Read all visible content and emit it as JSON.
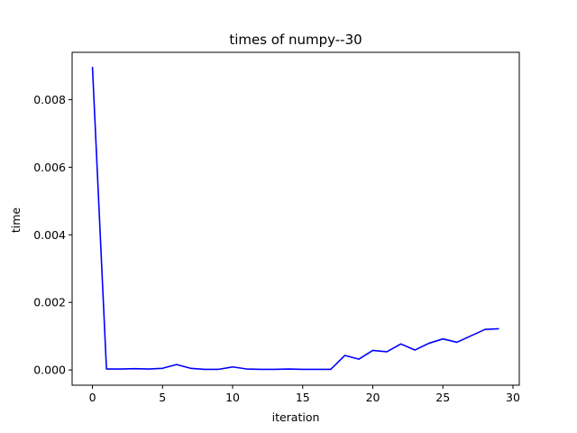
{
  "chart_data": {
    "type": "line",
    "title": "times of numpy--30",
    "xlabel": "iteration",
    "ylabel": "time",
    "xlim": [
      -1.45,
      30.45
    ],
    "ylim": [
      -0.00045,
      0.0094
    ],
    "xticks": [
      0,
      5,
      10,
      15,
      20,
      25,
      30
    ],
    "xtick_labels": [
      "0",
      "5",
      "10",
      "15",
      "20",
      "25",
      "30"
    ],
    "yticks": [
      0.0,
      0.002,
      0.004,
      0.006,
      0.008
    ],
    "ytick_labels": [
      "0.000",
      "0.002",
      "0.004",
      "0.006",
      "0.008"
    ],
    "grid": false,
    "legend": "none",
    "series": [
      {
        "color": "#0000ff",
        "x": [
          0,
          1,
          2,
          3,
          4,
          5,
          6,
          7,
          8,
          9,
          10,
          11,
          12,
          13,
          14,
          15,
          16,
          17,
          18,
          19,
          20,
          21,
          22,
          23,
          24,
          25,
          26,
          27,
          28,
          29
        ],
        "values": [
          0.00897,
          3e-05,
          3e-05,
          4e-05,
          3e-05,
          5e-05,
          0.00016,
          5e-05,
          2e-05,
          2e-05,
          9e-05,
          3e-05,
          2e-05,
          2e-05,
          3e-05,
          2e-05,
          2e-05,
          2e-05,
          0.00043,
          0.00032,
          0.00058,
          0.00054,
          0.00077,
          0.00059,
          0.00079,
          0.00092,
          0.00082,
          0.00101,
          0.0012,
          0.00122
        ]
      }
    ]
  }
}
